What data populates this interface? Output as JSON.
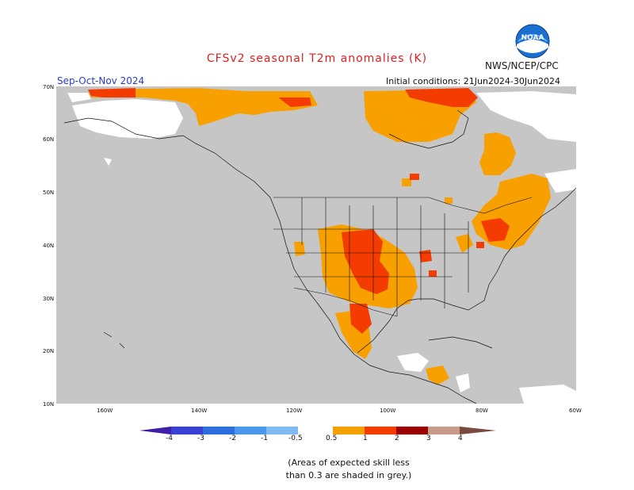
{
  "title": "CFSv2 seasonal T2m anomalies (K)",
  "agency": "NWS/NCEP/CPC",
  "season": "Sep-Oct-Nov 2024",
  "initial_conditions": "Initial conditions: 21Jun2024-30Jun2024",
  "logo_text": "NOAA",
  "lat_labels": [
    "70N",
    "60N",
    "50N",
    "40N",
    "30N",
    "20N",
    "10N"
  ],
  "lon_labels": [
    "160W",
    "140W",
    "120W",
    "100W",
    "80W",
    "60W"
  ],
  "colorbar": {
    "ticks": [
      "-4",
      "-3",
      "-2",
      "-1",
      "-0.5",
      "0.5",
      "1",
      "2",
      "3",
      "4"
    ],
    "colors": [
      "#3f1fa8",
      "#3a3fd6",
      "#2c6fdc",
      "#4a98ec",
      "#7fbaf2",
      "#ffffff",
      "#f4a000",
      "#f43c00",
      "#c81400",
      "#9a0000",
      "#c89a8a",
      "#7a4a40"
    ]
  },
  "note_line1": "(Areas of expected skill less",
  "note_line2": "than 0.3 are shaded in grey.)",
  "map_colors": {
    "ocean": "#ffffff",
    "no_skill": "#c6c6c6",
    "warm_1": "#f8a000",
    "warm_2": "#f43c00"
  }
}
